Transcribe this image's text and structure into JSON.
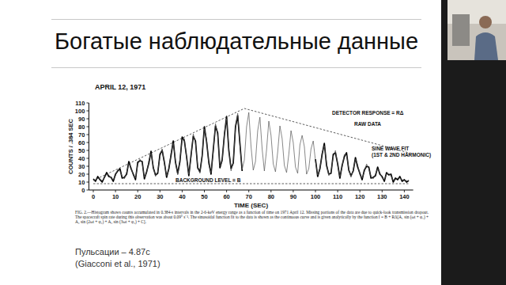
{
  "slide": {
    "title": "Богатые наблюдательные данные",
    "notes": [
      "Пульсации – 4.87с",
      "(Giacconi et al., 1971)"
    ]
  },
  "chart_data": {
    "type": "line",
    "title": "APRIL 12, 1971",
    "x_label": "TIME (SEC)",
    "y_label": "COUNTS / .384 SEC",
    "caption": "FIG. 2.—Histogram shows counts accumulated in 0.384-s intervals in the 2-6-keV energy range as a function of time on 1971 April 12. Missing portions of the data are due to quick-look transmission dropout. The spacecraft spin rate during this observation was about 0.09° s⁻¹. The sinusoidal function fit to the data is shown as the continuous curve and is given analytically by the function f = B + RΔ[A₁ sin (ωt + φ₁) + A₂ sin (2ωt + φ₂) + A₃ sin (3ωt + φ₃) + C].",
    "x": [
      0,
      1,
      2,
      3,
      4,
      5,
      6,
      7,
      8,
      9,
      10,
      11,
      12,
      13,
      14,
      15,
      16,
      17,
      18,
      19,
      20,
      21,
      22,
      23,
      24,
      25,
      26,
      27,
      28,
      29,
      30,
      31,
      32,
      33,
      34,
      35,
      36,
      37,
      38,
      39,
      40,
      41,
      42,
      43,
      44,
      45,
      46,
      47,
      48,
      49,
      50,
      51,
      52,
      53,
      54,
      55,
      56,
      57,
      58,
      59,
      60,
      61,
      62,
      63,
      64,
      65,
      66,
      67,
      68,
      69,
      70,
      71,
      72,
      73,
      74,
      75,
      76,
      77,
      78,
      79,
      80,
      81,
      82,
      83,
      84,
      85,
      86,
      87,
      88,
      89,
      90,
      91,
      92,
      93,
      94,
      95,
      96,
      97,
      98,
      99,
      100,
      101,
      102,
      103,
      104,
      105,
      106,
      107,
      108,
      109,
      110,
      111,
      112,
      113,
      114,
      115,
      116,
      117,
      118,
      119,
      120,
      121,
      122,
      123,
      124,
      125,
      126,
      127,
      128,
      129,
      130,
      131,
      132,
      133,
      134,
      135,
      136,
      137,
      138,
      139,
      140,
      141,
      142
    ],
    "series": [
      {
        "name": "RAW DATA",
        "color": "#000000",
        "line_style": "solid",
        "values": [
          14,
          11,
          17,
          13,
          10,
          16,
          22,
          17,
          16,
          11,
          20,
          24,
          27,
          15,
          16,
          20,
          36,
          27,
          20,
          13,
          35,
          37,
          36,
          14,
          23,
          34,
          49,
          28,
          19,
          21,
          45,
          50,
          35,
          16,
          27,
          44,
          62,
          35,
          21,
          36,
          67,
          62,
          42,
          18,
          44,
          68,
          62,
          28,
          23,
          43,
          80,
          61,
          35,
          20,
          51,
          81,
          72,
          28,
          38,
          69,
          93,
          50,
          27,
          34,
          80,
          94,
          59,
          24,
          null,
          null,
          null,
          null,
          null,
          null,
          null,
          null,
          null,
          null,
          null,
          null,
          null,
          null,
          null,
          null,
          null,
          null,
          null,
          null,
          null,
          null,
          null,
          null,
          null,
          null,
          null,
          null,
          null,
          null,
          null,
          null,
          39,
          17,
          27,
          45,
          59,
          31,
          20,
          21,
          45,
          47,
          33,
          15,
          31,
          42,
          47,
          25,
          18,
          24,
          41,
          29,
          21,
          13,
          25,
          30,
          29,
          15,
          16,
          18,
          29,
          20,
          17,
          11,
          22,
          19,
          20,
          10,
          15,
          13,
          17,
          11,
          13,
          10,
          12
        ]
      },
      {
        "name": "SINE WAVE FIT (1ST & 2ND HARMONIC)",
        "color": "#555555",
        "line_style": "solid",
        "values": [
          12,
          13,
          15,
          14,
          12,
          15,
          20,
          19,
          15,
          13,
          18,
          26,
          24,
          17,
          14,
          22,
          33,
          29,
          18,
          15,
          32,
          39,
          34,
          16,
          21,
          37,
          46,
          30,
          17,
          23,
          42,
          52,
          33,
          18,
          25,
          47,
          59,
          37,
          19,
          38,
          64,
          65,
          40,
          20,
          41,
          71,
          59,
          30,
          21,
          45,
          77,
          64,
          32,
          22,
          48,
          84,
          69,
          30,
          36,
          72,
          90,
          53,
          24,
          36,
          77,
          97,
          56,
          26,
          38,
          80,
          98,
          55,
          25,
          36,
          75,
          92,
          52,
          24,
          51,
          87,
          69,
          33,
          23,
          48,
          81,
          65,
          31,
          22,
          45,
          75,
          60,
          29,
          21,
          57,
          69,
          55,
          20,
          27,
          52,
          62,
          37,
          19,
          25,
          47,
          56,
          34,
          18,
          23,
          42,
          50,
          31,
          17,
          29,
          45,
          44,
          27,
          16,
          26,
          39,
          32,
          19,
          15,
          23,
          33,
          27,
          17,
          14,
          20,
          27,
          22,
          15,
          13,
          20,
          21,
          18,
          12,
          13,
          15,
          15,
          13,
          12,
          12,
          11
        ]
      },
      {
        "name": "DETECTOR RESPONSE = RΔ",
        "color": "#333333",
        "line_style": "dashed",
        "x": [
          0,
          68,
          142
        ],
        "values": [
          12,
          103,
          47
        ]
      },
      {
        "name": "BACKGROUND LEVEL = B",
        "color": "#333333",
        "line_style": "dashed",
        "x": [
          0,
          142
        ],
        "values": [
          8,
          8
        ]
      }
    ],
    "xlim": [
      -2,
      144
    ],
    "ylim": [
      0,
      110
    ],
    "xticks": [
      0,
      10,
      20,
      30,
      40,
      50,
      60,
      70,
      80,
      90,
      100,
      110,
      120,
      130,
      140
    ],
    "yticks": [
      0,
      10,
      20,
      30,
      40,
      50,
      60,
      70,
      80,
      90,
      100,
      110
    ],
    "grid": false
  }
}
